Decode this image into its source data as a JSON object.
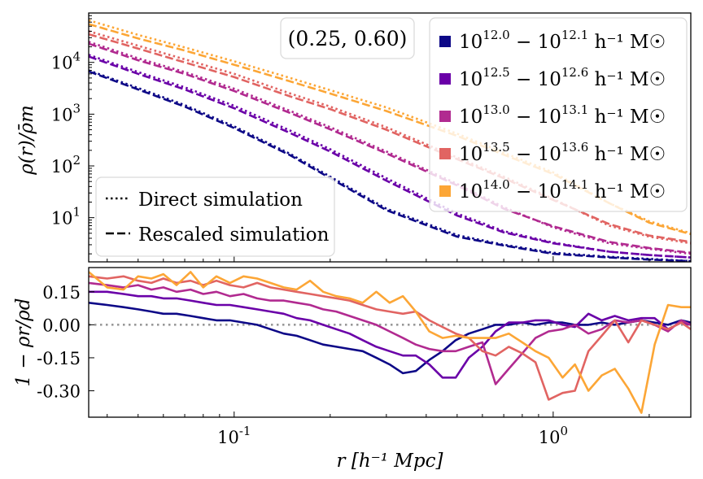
{
  "chart_data": [
    {
      "panel": "top",
      "type": "line",
      "title": "",
      "xlabel": "",
      "ylabel": "ρ(r)/ρ̄m",
      "xscale": "log",
      "yscale": "log",
      "xlim": [
        0.035,
        2.7
      ],
      "ylim": [
        1.4,
        90000
      ],
      "y_ticks": [
        10,
        100,
        1000,
        10000
      ],
      "y_tick_labels": [
        "10^1",
        "10^2",
        "10^3",
        "10^4"
      ],
      "annotation": "(0.25, 0.60)",
      "x": [
        0.035,
        0.05,
        0.07,
        0.1,
        0.15,
        0.2,
        0.3,
        0.5,
        0.7,
        1.0,
        1.5,
        2.0,
        2.7
      ],
      "series": [
        {
          "name": "10^{12.0} − 10^{12.1} h⁻¹ M☉",
          "color": "#0d0887",
          "direct": [
            7000,
            3200,
            1500,
            580,
            170,
            62,
            15,
            4.6,
            3.0,
            2.1,
            1.75,
            1.6,
            1.45
          ],
          "rescaled": [
            6700,
            3000,
            1400,
            540,
            160,
            58,
            14,
            4.3,
            2.9,
            2.0,
            1.7,
            1.55,
            1.45
          ]
        },
        {
          "name": "10^{12.5} − 10^{12.6} h⁻¹ M☉",
          "color": "#6a00a8",
          "direct": [
            14000,
            6500,
            3300,
            1450,
            480,
            210,
            58,
            12,
            5.5,
            3.3,
            2.2,
            1.9,
            1.7
          ],
          "rescaled": [
            13000,
            6000,
            3000,
            1300,
            430,
            190,
            52,
            11,
            5.2,
            3.2,
            2.2,
            1.9,
            1.7
          ]
        },
        {
          "name": "10^{13.0} − 10^{13.1} h⁻¹ M☉",
          "color": "#b12a90",
          "direct": [
            25000,
            12000,
            6500,
            3100,
            1150,
            560,
            190,
            45,
            16,
            6.5,
            3.2,
            2.5,
            2.0
          ],
          "rescaled": [
            23000,
            11000,
            6000,
            2800,
            1050,
            510,
            175,
            42,
            15,
            6.8,
            3.4,
            2.6,
            2.1
          ]
        },
        {
          "name": "10^{13.5} − 10^{13.6} h⁻¹ M☉",
          "color": "#e16462",
          "direct": [
            40000,
            21000,
            11500,
            6000,
            2500,
            1400,
            560,
            145,
            62,
            23,
            7.0,
            4.3,
            3.2
          ],
          "rescaled": [
            35000,
            18500,
            10000,
            5200,
            2200,
            1250,
            500,
            135,
            58,
            22,
            7.5,
            4.5,
            3.4
          ]
        },
        {
          "name": "10^{14.0} − 10^{14.1} h⁻¹ M☉",
          "color": "#fca636",
          "direct": [
            65000,
            34000,
            19500,
            10500,
            5000,
            2900,
            1350,
            420,
            180,
            75,
            19,
            8.5,
            5.0
          ],
          "rescaled": [
            55000,
            29000,
            17000,
            9000,
            4300,
            2500,
            1150,
            380,
            165,
            70,
            19,
            8.0,
            4.8
          ]
        }
      ],
      "legend_series": [
        "10^{12.0} − 10^{12.1} h⁻¹ M☉",
        "10^{12.5} − 10^{12.6} h⁻¹ M☉",
        "10^{13.0} − 10^{13.1} h⁻¹ M☉",
        "10^{13.5} − 10^{13.6} h⁻¹ M☉",
        "10^{14.0} − 10^{14.1} h⁻¹ M☉"
      ],
      "legend_style": [
        "Direct simulation",
        "Rescaled simulation"
      ]
    },
    {
      "panel": "bottom",
      "type": "line",
      "xlabel": "r [h⁻¹ Mpc]",
      "ylabel": "1 − ρr/ρd",
      "xscale": "log",
      "xlim": [
        0.035,
        2.7
      ],
      "ylim": [
        -0.42,
        0.26
      ],
      "y_ticks": [
        0.15,
        0.0,
        -0.15,
        -0.3
      ],
      "y_tick_labels": [
        "0.15",
        "0.00",
        "-0.15",
        "-0.30"
      ],
      "x_ticks": [
        0.1,
        1.0
      ],
      "x_tick_labels": [
        "10^{-1}",
        "10^{0}"
      ],
      "reference_line": 0.0,
      "x": [
        0.035,
        0.04,
        0.045,
        0.05,
        0.055,
        0.06,
        0.066,
        0.073,
        0.08,
        0.088,
        0.097,
        0.107,
        0.118,
        0.13,
        0.143,
        0.157,
        0.173,
        0.19,
        0.209,
        0.23,
        0.253,
        0.279,
        0.307,
        0.338,
        0.371,
        0.409,
        0.45,
        0.495,
        0.544,
        0.6,
        0.66,
        0.726,
        0.8,
        0.88,
        0.968,
        1.07,
        1.17,
        1.29,
        1.42,
        1.56,
        1.72,
        1.89,
        2.08,
        2.29,
        2.52,
        2.7
      ],
      "series": [
        {
          "name": "10^{12.0} − 10^{12.1} h⁻¹ M☉",
          "color": "#0d0887",
          "values": [
            0.1,
            0.09,
            0.08,
            0.07,
            0.06,
            0.05,
            0.05,
            0.04,
            0.03,
            0.02,
            0.02,
            0.01,
            0.0,
            -0.02,
            -0.04,
            -0.05,
            -0.07,
            -0.09,
            -0.1,
            -0.11,
            -0.12,
            -0.15,
            -0.18,
            -0.22,
            -0.21,
            -0.16,
            -0.12,
            -0.07,
            -0.04,
            -0.02,
            0.0,
            0.0,
            0.01,
            0.0,
            0.01,
            0.01,
            0.0,
            0.0,
            0.01,
            0.0,
            0.01,
            0.02,
            0.01,
            0.0,
            0.02,
            0.01
          ]
        },
        {
          "name": "10^{12.5} − 10^{12.6} h⁻¹ M☉",
          "color": "#6a00a8",
          "values": [
            0.15,
            0.15,
            0.14,
            0.13,
            0.13,
            0.12,
            0.12,
            0.11,
            0.1,
            0.09,
            0.09,
            0.08,
            0.07,
            0.06,
            0.05,
            0.03,
            0.02,
            0.0,
            -0.02,
            -0.04,
            -0.07,
            -0.1,
            -0.12,
            -0.14,
            -0.14,
            -0.18,
            -0.24,
            -0.24,
            -0.15,
            -0.1,
            -0.03,
            0.01,
            0.01,
            0.02,
            0.02,
            0.0,
            -0.01,
            0.05,
            0.02,
            0.04,
            0.02,
            0.03,
            0.03,
            -0.02,
            0.01,
            0.0
          ]
        },
        {
          "name": "10^{13.0} − 10^{13.1} h⁻¹ M☉",
          "color": "#b12a90",
          "values": [
            0.19,
            0.18,
            0.17,
            0.18,
            0.16,
            0.17,
            0.15,
            0.16,
            0.14,
            0.15,
            0.13,
            0.14,
            0.12,
            0.11,
            0.11,
            0.1,
            0.09,
            0.07,
            0.06,
            0.04,
            0.02,
            0.0,
            -0.03,
            -0.06,
            -0.09,
            -0.11,
            -0.12,
            -0.12,
            -0.1,
            -0.08,
            -0.27,
            -0.2,
            -0.13,
            -0.06,
            -0.03,
            -0.02,
            0.0,
            -0.04,
            -0.02,
            0.02,
            0.01,
            0.02,
            0.0,
            -0.03,
            0.02,
            0.0
          ]
        },
        {
          "name": "10^{13.5} − 10^{13.6} h⁻¹ M☉",
          "color": "#e16462",
          "values": [
            0.22,
            0.21,
            0.22,
            0.2,
            0.19,
            0.21,
            0.19,
            0.2,
            0.18,
            0.2,
            0.18,
            0.17,
            0.19,
            0.17,
            0.16,
            0.15,
            0.14,
            0.13,
            0.12,
            0.11,
            0.09,
            0.07,
            0.06,
            0.05,
            0.06,
            0.02,
            -0.01,
            -0.04,
            -0.06,
            -0.12,
            -0.14,
            -0.1,
            -0.13,
            -0.17,
            -0.34,
            -0.31,
            -0.3,
            -0.12,
            -0.05,
            0.02,
            -0.08,
            0.02,
            0.0,
            -0.02,
            0.01,
            -0.02
          ]
        },
        {
          "name": "10^{14.0} − 10^{14.1} h⁻¹ M☉",
          "color": "#fca636",
          "values": [
            0.24,
            0.17,
            0.16,
            0.22,
            0.21,
            0.23,
            0.18,
            0.24,
            0.17,
            0.22,
            0.19,
            0.22,
            0.21,
            0.19,
            0.17,
            0.16,
            0.2,
            0.15,
            0.13,
            0.12,
            0.1,
            0.15,
            0.1,
            0.13,
            0.06,
            -0.03,
            -0.06,
            -0.05,
            -0.06,
            -0.06,
            -0.06,
            -0.04,
            -0.08,
            -0.12,
            -0.15,
            -0.24,
            -0.18,
            -0.3,
            -0.23,
            -0.2,
            -0.29,
            -0.4,
            -0.09,
            0.09,
            0.08,
            0.08
          ]
        }
      ]
    }
  ]
}
